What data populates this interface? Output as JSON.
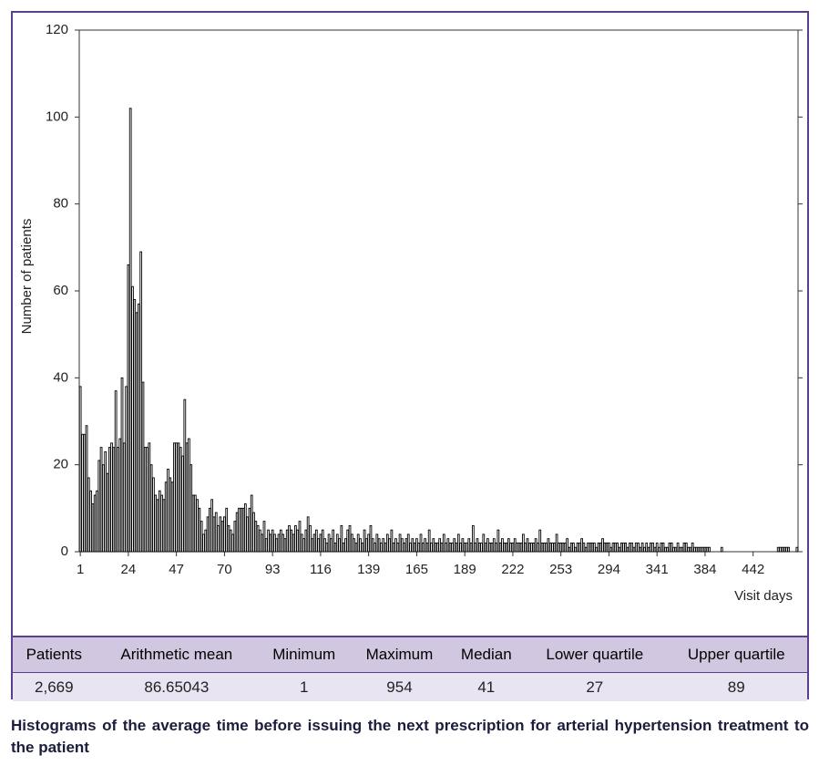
{
  "chart_data": {
    "type": "bar",
    "y_label": "Number of patients",
    "x_label": "Visit days",
    "categories": [
      "1",
      null,
      null,
      null,
      null,
      null,
      null,
      null,
      null,
      null,
      null,
      null,
      null,
      null,
      null,
      null,
      null,
      null,
      null,
      null,
      null,
      null,
      null,
      "24",
      null,
      null,
      null,
      null,
      null,
      null,
      null,
      null,
      null,
      null,
      null,
      null,
      null,
      null,
      null,
      null,
      null,
      null,
      null,
      null,
      null,
      null,
      "47",
      null,
      null,
      null,
      null,
      null,
      null,
      null,
      null,
      null,
      null,
      null,
      null,
      null,
      null,
      null,
      null,
      null,
      null,
      null,
      null,
      null,
      null,
      "70",
      null,
      null,
      null,
      null,
      null,
      null,
      null,
      null,
      null,
      null,
      null,
      null,
      null,
      null,
      null,
      null,
      null,
      null,
      null,
      null,
      null,
      null,
      "93",
      null,
      null,
      null,
      null,
      null,
      null,
      null,
      null,
      null,
      null,
      null,
      null,
      null,
      null,
      null,
      null,
      null,
      null,
      null,
      null,
      null,
      null,
      "116",
      null,
      null,
      null,
      null,
      null,
      null,
      null,
      null,
      null,
      null,
      null,
      null,
      null,
      null,
      null,
      null,
      null,
      null,
      null,
      null,
      null,
      null,
      "139",
      null,
      null,
      null,
      null,
      null,
      null,
      null,
      null,
      null,
      null,
      null,
      null,
      null,
      null,
      null,
      null,
      null,
      null,
      null,
      null,
      null,
      null,
      "165",
      null,
      null,
      null,
      null,
      null,
      null,
      null,
      null,
      null,
      null,
      null,
      null,
      null,
      null,
      null,
      null,
      null,
      null,
      null,
      null,
      null,
      null,
      "189",
      null,
      null,
      null,
      null,
      null,
      null,
      null,
      null,
      null,
      null,
      null,
      null,
      null,
      null,
      null,
      null,
      null,
      null,
      null,
      null,
      null,
      null,
      "222",
      null,
      null,
      null,
      null,
      null,
      null,
      null,
      null,
      null,
      null,
      null,
      null,
      null,
      null,
      null,
      null,
      null,
      null,
      null,
      null,
      null,
      null,
      "253",
      null,
      null,
      null,
      null,
      null,
      null,
      null,
      null,
      null,
      null,
      null,
      null,
      null,
      null,
      null,
      null,
      null,
      null,
      null,
      null,
      null,
      null,
      "294",
      null,
      null,
      null,
      null,
      null,
      null,
      null,
      null,
      null,
      null,
      null,
      null,
      null,
      null,
      null,
      null,
      null,
      null,
      null,
      null,
      null,
      null,
      "341",
      null,
      null,
      null,
      null,
      null,
      null,
      null,
      null,
      null,
      null,
      null,
      null,
      null,
      null,
      null,
      null,
      null,
      null,
      null,
      null,
      null,
      null,
      "384",
      null,
      null,
      null,
      null,
      null,
      null,
      null,
      null,
      null,
      null,
      null,
      null,
      null,
      null,
      null,
      null,
      null,
      null,
      null,
      null,
      null,
      null,
      "442",
      null,
      null,
      null,
      null,
      null,
      null,
      null,
      null,
      null,
      null,
      null,
      null,
      null,
      null,
      null,
      null,
      null,
      null,
      null,
      null,
      null
    ],
    "values": [
      38,
      27,
      27,
      29,
      17,
      14,
      11,
      13,
      14,
      21,
      24,
      20,
      23,
      18,
      24,
      25,
      24,
      37,
      24,
      26,
      40,
      25,
      38,
      66,
      102,
      61,
      58,
      55,
      57,
      69,
      39,
      24,
      24,
      25,
      20,
      17,
      13,
      12,
      14,
      13,
      12,
      16,
      19,
      17,
      16,
      25,
      25,
      25,
      24,
      22,
      35,
      25,
      26,
      20,
      13,
      13,
      12,
      10,
      7,
      4,
      5,
      8,
      10,
      12,
      8,
      9,
      6,
      8,
      7,
      8,
      10,
      6,
      5,
      4,
      7,
      9,
      10,
      10,
      10,
      11,
      8,
      10,
      13,
      9,
      7,
      6,
      5,
      4,
      7,
      3,
      5,
      4,
      5,
      4,
      3,
      4,
      5,
      4,
      3,
      5,
      6,
      5,
      4,
      6,
      5,
      7,
      4,
      3,
      5,
      8,
      6,
      3,
      4,
      5,
      3,
      4,
      5,
      3,
      2,
      4,
      3,
      5,
      2,
      4,
      3,
      6,
      2,
      3,
      5,
      6,
      4,
      3,
      2,
      4,
      3,
      2,
      5,
      3,
      4,
      6,
      3,
      2,
      4,
      3,
      2,
      3,
      2,
      4,
      3,
      5,
      2,
      3,
      2,
      4,
      3,
      2,
      3,
      4,
      2,
      3,
      2,
      3,
      2,
      4,
      2,
      3,
      2,
      5,
      2,
      3,
      2,
      2,
      3,
      2,
      4,
      2,
      3,
      2,
      2,
      3,
      2,
      4,
      2,
      3,
      2,
      2,
      3,
      2,
      6,
      2,
      3,
      2,
      2,
      4,
      2,
      3,
      2,
      2,
      3,
      2,
      5,
      2,
      3,
      2,
      2,
      3,
      2,
      2,
      3,
      2,
      2,
      2,
      4,
      2,
      3,
      2,
      2,
      2,
      3,
      2,
      5,
      2,
      2,
      2,
      3,
      2,
      2,
      2,
      4,
      2,
      2,
      2,
      2,
      3,
      1,
      2,
      2,
      1,
      2,
      2,
      3,
      2,
      1,
      2,
      2,
      2,
      2,
      1,
      2,
      2,
      3,
      2,
      2,
      2,
      1,
      2,
      2,
      2,
      1,
      2,
      2,
      2,
      1,
      2,
      2,
      1,
      2,
      2,
      1,
      2,
      1,
      2,
      1,
      2,
      2,
      1,
      2,
      1,
      2,
      2,
      1,
      1,
      2,
      2,
      1,
      1,
      2,
      1,
      1,
      2,
      2,
      1,
      1,
      2,
      1,
      1,
      1,
      1,
      1,
      1,
      1,
      1,
      0,
      0,
      0,
      0,
      0,
      1,
      0,
      0,
      0,
      0,
      0,
      0,
      0,
      0,
      0,
      0,
      0,
      0,
      0,
      0,
      0,
      0,
      0,
      0,
      0,
      0,
      0,
      0,
      0,
      0,
      0,
      0,
      1,
      1,
      1,
      1,
      1,
      1,
      0,
      0,
      0,
      1
    ],
    "color": "#ffffff",
    "ylim": [
      0,
      120
    ],
    "yticks": [
      0,
      20,
      40,
      60,
      80,
      100,
      120
    ],
    "grid": false
  },
  "table": {
    "header": [
      "Patients",
      "Arithmetic mean",
      "Minimum",
      "Maximum",
      "Median",
      "Lower quartile",
      "Upper quartile"
    ],
    "rows": [
      [
        "2,669",
        "86.65043",
        "1",
        "954",
        "41",
        "27",
        "89"
      ]
    ]
  },
  "caption": "Histograms of the average time before issuing the next prescription for arterial hypertension treatment to the patient"
}
